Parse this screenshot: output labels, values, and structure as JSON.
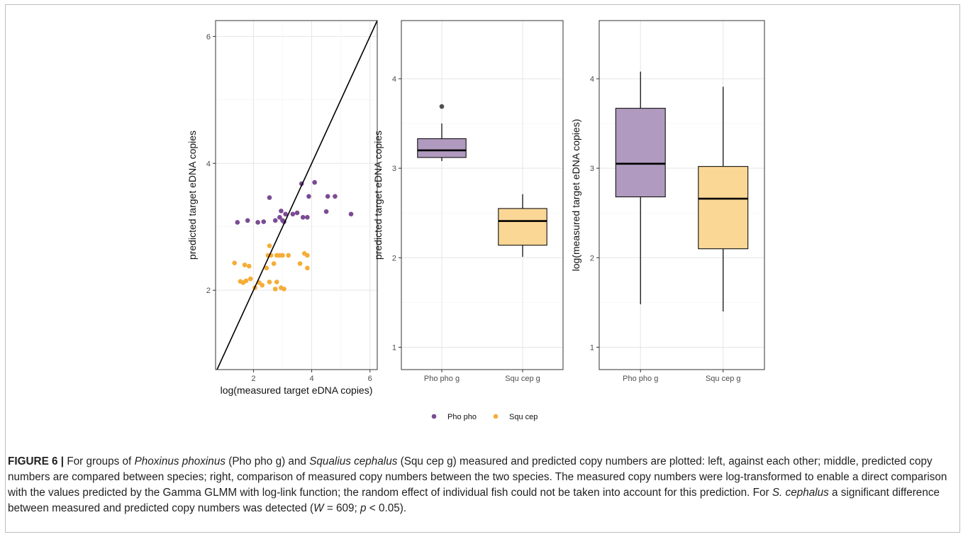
{
  "chart_data": [
    {
      "type": "scatter",
      "xlabel": "log(measured target eDNA copies)",
      "ylabel": "predicted target eDNA copies",
      "xlim": [
        0.7,
        6.25
      ],
      "ylim": [
        0.75,
        6.25
      ],
      "xticks": [
        2,
        4,
        6
      ],
      "yticks": [
        2,
        4,
        6
      ],
      "grid": true,
      "reference_line": "y = x",
      "series": [
        {
          "name": "Pho pho",
          "color": "#7b4b94",
          "points": [
            [
              1.45,
              3.07
            ],
            [
              1.8,
              3.1
            ],
            [
              2.15,
              3.07
            ],
            [
              2.35,
              3.08
            ],
            [
              2.55,
              3.46
            ],
            [
              2.75,
              3.1
            ],
            [
              2.9,
              3.15
            ],
            [
              2.95,
              3.25
            ],
            [
              3.0,
              3.1
            ],
            [
              3.05,
              3.08
            ],
            [
              3.1,
              3.2
            ],
            [
              3.35,
              3.2
            ],
            [
              3.5,
              3.22
            ],
            [
              3.65,
              3.68
            ],
            [
              3.7,
              3.15
            ],
            [
              3.85,
              3.15
            ],
            [
              3.9,
              3.48
            ],
            [
              4.1,
              3.7
            ],
            [
              4.5,
              3.24
            ],
            [
              4.55,
              3.48
            ],
            [
              4.8,
              3.48
            ],
            [
              5.35,
              3.2
            ]
          ]
        },
        {
          "name": "Squ cep",
          "color": "#f5ad38",
          "points": [
            [
              1.35,
              2.43
            ],
            [
              1.55,
              2.14
            ],
            [
              1.65,
              2.12
            ],
            [
              1.7,
              2.4
            ],
            [
              1.75,
              2.15
            ],
            [
              1.85,
              2.38
            ],
            [
              1.9,
              2.18
            ],
            [
              2.05,
              2.04
            ],
            [
              2.2,
              2.12
            ],
            [
              2.3,
              2.08
            ],
            [
              2.45,
              2.35
            ],
            [
              2.5,
              2.55
            ],
            [
              2.55,
              2.7
            ],
            [
              2.55,
              2.13
            ],
            [
              2.6,
              2.55
            ],
            [
              2.7,
              2.42
            ],
            [
              2.75,
              2.02
            ],
            [
              2.8,
              2.13
            ],
            [
              2.8,
              2.55
            ],
            [
              2.9,
              2.55
            ],
            [
              2.95,
              2.04
            ],
            [
              3.0,
              2.55
            ],
            [
              3.05,
              2.02
            ],
            [
              3.2,
              2.55
            ],
            [
              3.6,
              2.42
            ],
            [
              3.75,
              2.58
            ],
            [
              3.85,
              2.55
            ],
            [
              3.85,
              2.35
            ]
          ]
        }
      ]
    },
    {
      "type": "box",
      "xlabel": "",
      "ylabel": "predicted target eDNA copies",
      "ylim": [
        0.75,
        4.65
      ],
      "yticks": [
        1,
        2,
        3,
        4
      ],
      "categories": [
        "Pho pho g",
        "Squ cep g"
      ],
      "boxes": [
        {
          "category": "Pho pho g",
          "color": "#b09abf",
          "q1": 3.12,
          "median": 3.2,
          "q3": 3.33,
          "whisker_low": 3.08,
          "whisker_high": 3.5,
          "outliers": [
            3.69
          ]
        },
        {
          "category": "Squ cep g",
          "color": "#fbd795",
          "q1": 2.14,
          "median": 2.41,
          "q3": 2.55,
          "whisker_low": 2.01,
          "whisker_high": 2.71,
          "outliers": []
        }
      ]
    },
    {
      "type": "box",
      "xlabel": "",
      "ylabel": "log(measured target eDNA copies)",
      "ylim": [
        0.75,
        4.65
      ],
      "yticks": [
        1,
        2,
        3,
        4
      ],
      "categories": [
        "Pho pho g",
        "Squ cep g"
      ],
      "boxes": [
        {
          "category": "Pho pho g",
          "color": "#b09abf",
          "q1": 2.68,
          "median": 3.05,
          "q3": 3.67,
          "whisker_low": 1.48,
          "whisker_high": 4.08,
          "outliers": []
        },
        {
          "category": "Squ cep g",
          "color": "#fbd795",
          "q1": 2.1,
          "median": 2.66,
          "q3": 3.02,
          "whisker_low": 1.4,
          "whisker_high": 3.91,
          "outliers": []
        }
      ]
    }
  ],
  "legend": {
    "items": [
      {
        "label": "Pho pho",
        "color": "#7b4b94"
      },
      {
        "label": "Squ cep",
        "color": "#f5ad38"
      }
    ]
  },
  "caption": {
    "label": "FIGURE 6 |",
    "t1": " For groups of ",
    "sp1": "Phoxinus phoxinus",
    "t2": " (Pho pho g) and ",
    "sp2": "Squalius cephalus",
    "t3": " (Squ cep g) measured and predicted copy numbers are plotted: left, against each other; middle, predicted copy numbers are compared between species; right, comparison of measured copy numbers between the two species. The measured copy numbers were log-transformed to enable a direct comparison with the values predicted by the Gamma GLMM with log-link function; the random effect of individual fish could not be taken into account for this prediction. For ",
    "sp3": "S. cephalus",
    "t4": " a significant difference between measured and predicted copy numbers was detected (",
    "w": "W",
    "t5": " = 609; ",
    "p": "p",
    "t6": " < 0.05)."
  }
}
